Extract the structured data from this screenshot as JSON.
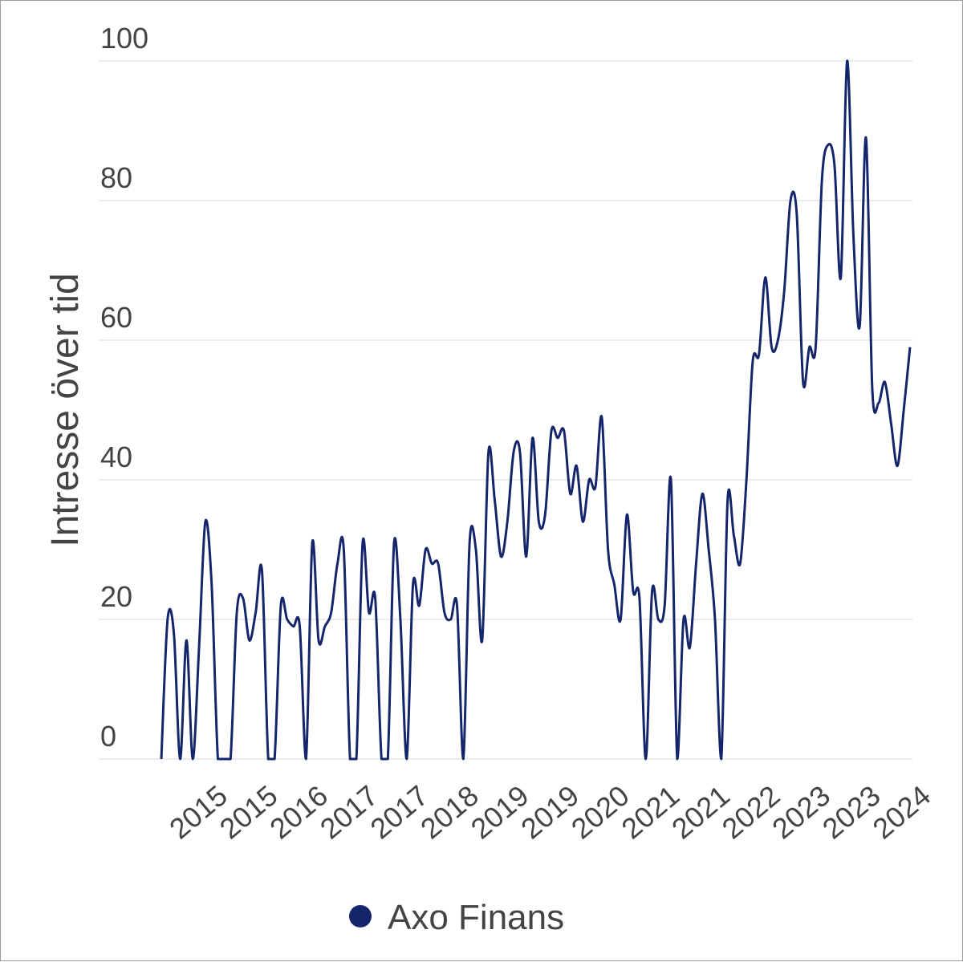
{
  "chart_data": {
    "type": "line",
    "title": "",
    "xlabel": "",
    "ylabel": "Intresse över tid",
    "ylim": [
      0,
      100
    ],
    "yticks": [
      0,
      20,
      40,
      60,
      80,
      100
    ],
    "grid": "horizontal",
    "legend_placement": "bottom",
    "xtick_labels": [
      "2015",
      "2015",
      "2016",
      "2017",
      "2017",
      "2018",
      "2019",
      "2019",
      "2020",
      "2021",
      "2021",
      "2022",
      "2023",
      "2023",
      "2024"
    ],
    "series": [
      {
        "name": "Axo Finans",
        "color": "#15256b",
        "values": [
          0,
          20,
          18,
          0,
          17,
          0,
          16,
          34,
          25,
          0,
          0,
          0,
          21,
          23,
          17,
          21,
          27,
          0,
          0,
          22,
          20,
          19,
          19,
          0,
          31,
          17,
          19,
          21,
          28,
          30,
          0,
          0,
          31,
          21,
          23,
          0,
          0,
          31,
          20,
          0,
          25,
          22,
          30,
          28,
          28,
          21,
          20,
          22,
          0,
          31,
          30,
          17,
          44,
          37,
          29,
          34,
          44,
          44,
          29,
          46,
          34,
          35,
          47,
          46,
          47,
          38,
          42,
          34,
          40,
          39,
          49,
          30,
          25,
          20,
          35,
          24,
          23,
          0,
          24,
          20,
          22,
          40,
          0,
          20,
          16,
          28,
          38,
          30,
          20,
          0,
          37,
          32,
          28,
          40,
          57,
          58,
          69,
          59,
          60,
          67,
          80,
          78,
          54,
          59,
          59,
          83,
          88,
          85,
          69,
          100,
          75,
          62,
          89,
          53,
          51,
          54,
          48,
          42,
          50,
          59
        ]
      }
    ]
  }
}
